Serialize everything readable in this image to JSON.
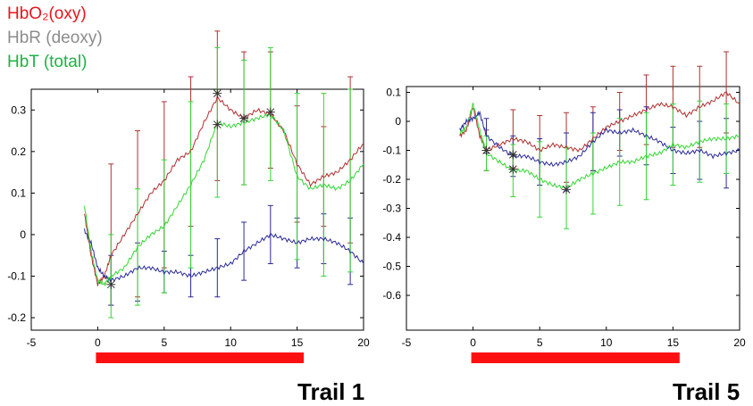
{
  "legend": [
    {
      "label": "HbO₂(oxy)",
      "color": "#e8141c"
    },
    {
      "label": "HbR (deoxy)",
      "color": "#8c8c8c"
    },
    {
      "label": "HbT (total)",
      "color": "#1db344"
    }
  ],
  "colors": {
    "oxy": "#b03030",
    "deoxy": "#2a2a9a",
    "total": "#33d633",
    "stim_bar": "#ff1010",
    "marker": "#333333"
  },
  "chart_data": [
    {
      "type": "line",
      "title": "Trail 1",
      "xlim": [
        -5,
        20
      ],
      "ylim": [
        -0.23,
        0.35
      ],
      "xticks": [
        "-5",
        "0",
        "5",
        "10",
        "15",
        "20"
      ],
      "xtick_values": [
        -5,
        0,
        5,
        10,
        15,
        20
      ],
      "yticks": [
        "-0.2",
        "-0.1",
        "0",
        "0.1",
        "0.2",
        "0.3"
      ],
      "ytick_values": [
        -0.2,
        -0.1,
        0,
        0.1,
        0.2,
        0.3
      ],
      "stimulus": [
        0,
        15.5
      ],
      "series": [
        {
          "key": "oxy",
          "x": [
            -1,
            -0.5,
            0,
            0.5,
            1,
            2,
            3,
            4,
            5,
            6,
            7,
            8,
            9,
            10,
            11,
            12,
            13,
            14,
            15,
            16,
            17,
            18,
            19,
            20
          ],
          "y": [
            0.05,
            -0.05,
            -0.12,
            -0.1,
            -0.05,
            0.0,
            0.05,
            0.1,
            0.13,
            0.18,
            0.2,
            0.27,
            0.33,
            0.3,
            0.28,
            0.3,
            0.29,
            0.25,
            0.17,
            0.12,
            0.14,
            0.15,
            0.18,
            0.22
          ]
        },
        {
          "key": "deoxy",
          "x": [
            -1,
            -0.5,
            0,
            0.5,
            1,
            2,
            3,
            4,
            5,
            6,
            7,
            8,
            9,
            10,
            11,
            12,
            13,
            14,
            15,
            16,
            17,
            18,
            19,
            20
          ],
          "y": [
            0.01,
            -0.02,
            -0.08,
            -0.1,
            -0.11,
            -0.1,
            -0.08,
            -0.08,
            -0.09,
            -0.09,
            -0.1,
            -0.09,
            -0.08,
            -0.07,
            -0.04,
            -0.02,
            0.0,
            -0.01,
            -0.02,
            -0.01,
            -0.01,
            -0.02,
            -0.04,
            -0.07
          ]
        },
        {
          "key": "total",
          "x": [
            -1,
            -0.5,
            0,
            0.5,
            1,
            2,
            3,
            4,
            5,
            6,
            7,
            8,
            9,
            10,
            11,
            12,
            13,
            14,
            15,
            16,
            17,
            18,
            19,
            20
          ],
          "y": [
            0.07,
            -0.04,
            -0.11,
            -0.12,
            -0.1,
            -0.08,
            -0.03,
            0.0,
            0.02,
            0.07,
            0.12,
            0.18,
            0.27,
            0.26,
            0.27,
            0.28,
            0.29,
            0.25,
            0.14,
            0.11,
            0.12,
            0.11,
            0.13,
            0.17
          ]
        }
      ],
      "error_bars": [
        {
          "key": "oxy",
          "x": [
            1,
            3,
            5,
            7,
            9,
            11,
            13,
            15,
            17,
            19
          ],
          "y": [
            0.0,
            0.05,
            0.12,
            0.2,
            0.31,
            0.28,
            0.3,
            0.17,
            0.14,
            0.18
          ],
          "err": [
            0.17,
            0.2,
            0.2,
            0.18,
            0.18,
            0.16,
            0.14,
            0.14,
            0.12,
            0.2
          ]
        },
        {
          "key": "deoxy",
          "x": [
            1,
            3,
            5,
            7,
            9,
            11,
            13,
            15,
            17,
            19
          ],
          "y": [
            -0.11,
            -0.09,
            -0.09,
            -0.1,
            -0.08,
            -0.04,
            0.0,
            -0.02,
            -0.01,
            -0.04
          ],
          "err": [
            0.06,
            0.07,
            0.05,
            0.05,
            0.07,
            0.07,
            0.07,
            0.06,
            0.06,
            0.08
          ]
        },
        {
          "key": "total",
          "x": [
            1,
            3,
            5,
            7,
            9,
            11,
            13,
            15,
            17,
            19
          ],
          "y": [
            -0.1,
            -0.03,
            0.02,
            0.12,
            0.27,
            0.27,
            0.29,
            0.14,
            0.12,
            0.13
          ],
          "err": [
            0.1,
            0.14,
            0.16,
            0.2,
            0.18,
            0.15,
            0.16,
            0.2,
            0.22,
            0.22
          ]
        }
      ],
      "markers": [
        [
          1,
          -0.12
        ],
        [
          9,
          0.34
        ],
        [
          9,
          0.265
        ],
        [
          11,
          0.28
        ],
        [
          13,
          0.295
        ]
      ]
    },
    {
      "type": "line",
      "title": "Trail 5",
      "xlim": [
        -5,
        20
      ],
      "ylim": [
        -0.72,
        0.12
      ],
      "xticks": [
        "-5",
        "0",
        "5",
        "10",
        "15",
        "20"
      ],
      "xtick_values": [
        -5,
        0,
        5,
        10,
        15,
        20
      ],
      "yticks": [
        "-0.6",
        "-0.5",
        "-0.4",
        "-0.3",
        "-0.2",
        "-0.1",
        "0",
        "0.1"
      ],
      "ytick_values": [
        -0.6,
        -0.5,
        -0.4,
        -0.3,
        -0.2,
        -0.1,
        0,
        0.1
      ],
      "stimulus": [
        0,
        15.5
      ],
      "series": [
        {
          "key": "oxy",
          "x": [
            -1,
            -0.5,
            0,
            0.5,
            1,
            2,
            3,
            4,
            5,
            6,
            7,
            8,
            9,
            10,
            11,
            12,
            13,
            14,
            15,
            16,
            17,
            18,
            19,
            20
          ],
          "y": [
            -0.05,
            -0.03,
            0.05,
            -0.05,
            -0.1,
            -0.08,
            -0.06,
            -0.07,
            -0.1,
            -0.08,
            -0.09,
            -0.1,
            -0.06,
            -0.02,
            0.0,
            0.02,
            0.04,
            0.06,
            0.05,
            0.02,
            0.05,
            0.07,
            0.1,
            0.06
          ]
        },
        {
          "key": "deoxy",
          "x": [
            -1,
            -0.5,
            0,
            0.5,
            1,
            2,
            3,
            4,
            5,
            6,
            7,
            8,
            9,
            10,
            11,
            12,
            13,
            14,
            15,
            16,
            17,
            18,
            19,
            20
          ],
          "y": [
            -0.03,
            0.0,
            0.01,
            0.03,
            -0.05,
            -0.09,
            -0.12,
            -0.12,
            -0.14,
            -0.15,
            -0.14,
            -0.12,
            -0.07,
            -0.03,
            -0.04,
            -0.03,
            -0.05,
            -0.07,
            -0.1,
            -0.11,
            -0.1,
            -0.12,
            -0.11,
            -0.1
          ]
        },
        {
          "key": "total",
          "x": [
            -1,
            -0.5,
            0,
            0.5,
            1,
            2,
            3,
            4,
            5,
            6,
            7,
            8,
            9,
            10,
            11,
            12,
            13,
            14,
            15,
            16,
            17,
            18,
            19,
            20
          ],
          "y": [
            -0.04,
            -0.02,
            0.06,
            -0.03,
            -0.11,
            -0.14,
            -0.17,
            -0.17,
            -0.2,
            -0.22,
            -0.23,
            -0.2,
            -0.18,
            -0.16,
            -0.14,
            -0.14,
            -0.12,
            -0.11,
            -0.08,
            -0.09,
            -0.07,
            -0.06,
            -0.06,
            -0.05
          ]
        }
      ],
      "error_bars": [
        {
          "key": "oxy",
          "x": [
            1,
            3,
            5,
            7,
            9,
            11,
            13,
            15,
            17,
            19
          ],
          "y": [
            -0.1,
            -0.06,
            -0.1,
            -0.09,
            -0.06,
            0.0,
            0.04,
            0.05,
            0.05,
            0.1
          ],
          "err": [
            0.07,
            0.1,
            0.12,
            0.12,
            0.11,
            0.1,
            0.12,
            0.14,
            0.14,
            0.14
          ]
        },
        {
          "key": "deoxy",
          "x": [
            1,
            3,
            5,
            7,
            9,
            11,
            13,
            15,
            17,
            19
          ],
          "y": [
            -0.05,
            -0.12,
            -0.14,
            -0.14,
            -0.07,
            -0.04,
            -0.05,
            -0.1,
            -0.1,
            -0.11
          ],
          "err": [
            0.06,
            0.07,
            0.08,
            0.1,
            0.1,
            0.08,
            0.1,
            0.08,
            0.1,
            0.12
          ]
        },
        {
          "key": "total",
          "x": [
            1,
            3,
            5,
            7,
            9,
            11,
            13,
            15,
            17,
            19
          ],
          "y": [
            -0.11,
            -0.17,
            -0.2,
            -0.23,
            -0.18,
            -0.14,
            -0.12,
            -0.08,
            -0.07,
            -0.06
          ],
          "err": [
            0.06,
            0.09,
            0.13,
            0.14,
            0.14,
            0.15,
            0.15,
            0.14,
            0.14,
            0.12
          ]
        }
      ],
      "markers": [
        [
          1,
          -0.1
        ],
        [
          3,
          -0.115
        ],
        [
          3,
          -0.165
        ],
        [
          7,
          -0.235
        ]
      ]
    }
  ]
}
